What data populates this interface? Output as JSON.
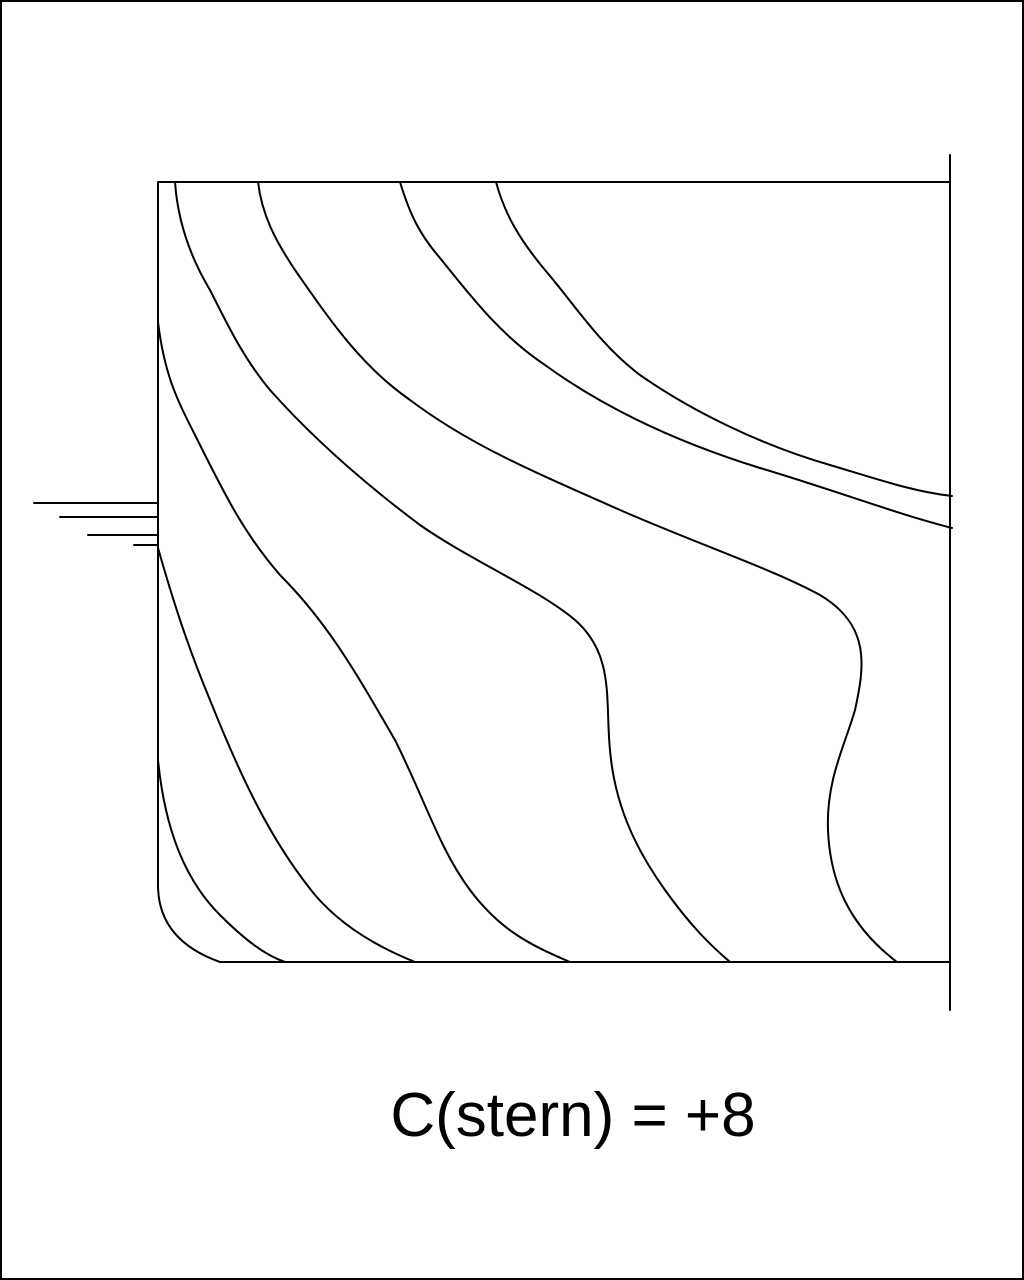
{
  "caption": "C(stern) = +8",
  "colors": {
    "line": "#000000",
    "background": "#ffffff"
  }
}
